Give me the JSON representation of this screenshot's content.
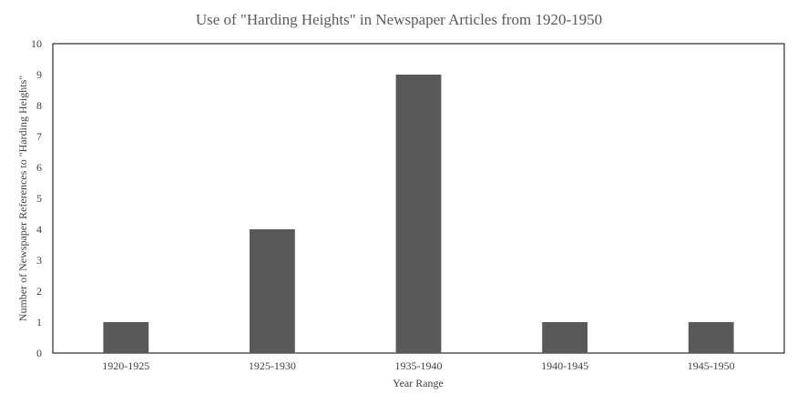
{
  "chart_data": {
    "type": "bar",
    "title": "Use of \"Harding Heights\" in Newspaper Articles from 1920-1950",
    "xlabel": "Year Range",
    "ylabel": "Number of Newspaper References to \"Harding Heights\"",
    "categories": [
      "1920-1925",
      "1925-1930",
      "1935-1940",
      "1940-1945",
      "1945-1950"
    ],
    "values": [
      1,
      4,
      9,
      1,
      1
    ],
    "ylim": [
      0,
      10
    ],
    "yticks": [
      "0",
      "1",
      "2",
      "3",
      "4",
      "5",
      "6",
      "7",
      "8",
      "9",
      "10"
    ],
    "grid": false,
    "legend": "none",
    "bar_color": "#595959",
    "frame_color": "#000000"
  }
}
